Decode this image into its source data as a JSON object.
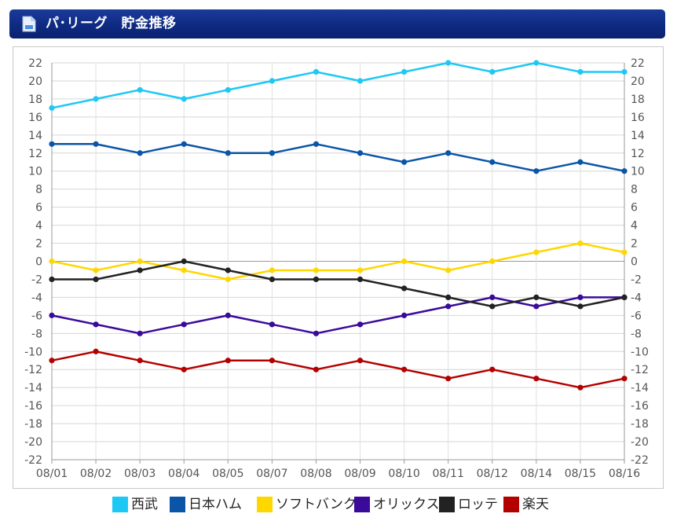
{
  "header": {
    "title": "パ･リーグ　貯金推移",
    "icon": "document-icon"
  },
  "chart_data": {
    "type": "line",
    "title": "",
    "xlabel": "",
    "ylabel": "",
    "categories": [
      "08/01",
      "08/02",
      "08/03",
      "08/04",
      "08/05",
      "08/07",
      "08/08",
      "08/09",
      "08/10",
      "08/11",
      "08/12",
      "08/14",
      "08/15",
      "08/16"
    ],
    "ylim": [
      -22,
      22
    ],
    "ytick_step": 2,
    "grid": true,
    "y_axis_both_sides": true,
    "legend_position": "bottom",
    "series": [
      {
        "name": "西武",
        "color": "#1ec8f5",
        "values": [
          17,
          18,
          19,
          18,
          19,
          20,
          21,
          20,
          21,
          22,
          21,
          22,
          21,
          21
        ]
      },
      {
        "name": "日本ハム",
        "color": "#0a55a8",
        "values": [
          13,
          13,
          12,
          13,
          12,
          12,
          13,
          12,
          11,
          12,
          11,
          10,
          11,
          10
        ]
      },
      {
        "name": "ソフトバンク",
        "color": "#ffd700",
        "values": [
          0,
          -1,
          0,
          -1,
          -2,
          -1,
          -1,
          -1,
          0,
          -1,
          0,
          1,
          2,
          1
        ]
      },
      {
        "name": "オリックス",
        "color": "#3a0a9a",
        "values": [
          -6,
          -7,
          -8,
          -7,
          -6,
          -7,
          -8,
          -7,
          -6,
          -5,
          -4,
          -5,
          -4,
          -4
        ]
      },
      {
        "name": "ロッテ",
        "color": "#222222",
        "values": [
          -2,
          -2,
          -1,
          0,
          -1,
          -2,
          -2,
          -2,
          -3,
          -4,
          -5,
          -4,
          -5,
          -4
        ]
      },
      {
        "name": "楽天",
        "color": "#b40000",
        "values": [
          -11,
          -10,
          -11,
          -12,
          -11,
          -11,
          -12,
          -11,
          -12,
          -13,
          -12,
          -13,
          -14,
          -13
        ]
      }
    ]
  }
}
